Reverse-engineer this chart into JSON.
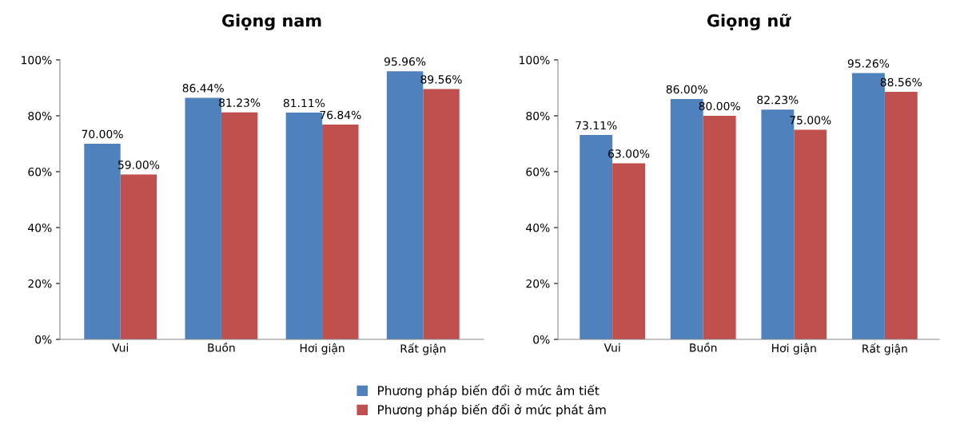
{
  "chart_data": [
    {
      "type": "bar",
      "title": "Giọng nam",
      "categories": [
        "Vui",
        "Buồn",
        "Hơi giận",
        "Rất giận"
      ],
      "series": [
        {
          "name": "Phương pháp biến đổi ở mức âm tiết",
          "color": "#4f81bd",
          "values": [
            70.0,
            86.44,
            81.11,
            95.96
          ],
          "value_labels": [
            "70.00%",
            "86.44%",
            "81.11%",
            "95.96%"
          ]
        },
        {
          "name": "Phương pháp biến đổi ở mức phát âm",
          "color": "#c0504d",
          "values": [
            59.0,
            81.23,
            76.84,
            89.56
          ],
          "value_labels": [
            "59.00%",
            "81.23%",
            "76.84%",
            "89.56%"
          ]
        }
      ],
      "ylim": [
        0,
        100
      ],
      "yticks": [
        {
          "value": 0,
          "label": "0%"
        },
        {
          "value": 20,
          "label": "20%"
        },
        {
          "value": 40,
          "label": "40%"
        },
        {
          "value": 60,
          "label": "60%"
        },
        {
          "value": 80,
          "label": "80%"
        },
        {
          "value": 100,
          "label": "100%"
        }
      ],
      "grid": false,
      "legend": "bottom"
    },
    {
      "type": "bar",
      "title": "Giọng nữ",
      "categories": [
        "Vui",
        "Buồn",
        "Hơi giận",
        "Rất giận"
      ],
      "series": [
        {
          "color": "#4f81bd",
          "values": [
            73.11,
            86.0,
            82.23,
            95.26
          ],
          "value_labels": [
            "73.11%",
            "86.00%",
            "82.23%",
            "95.26%"
          ]
        },
        {
          "color": "#c0504d",
          "values": [
            63.0,
            80.0,
            75.0,
            88.56
          ],
          "value_labels": [
            "63.00%",
            "80.00%",
            "75.00%",
            "88.56%"
          ]
        }
      ],
      "ylim": [
        0,
        100
      ],
      "yticks": [
        {
          "value": 0,
          "label": "0%"
        },
        {
          "value": 20,
          "label": "20%"
        },
        {
          "value": 40,
          "label": "40%"
        },
        {
          "value": 60,
          "label": "60%"
        },
        {
          "value": 80,
          "label": "80%"
        },
        {
          "value": 100,
          "label": "100%"
        }
      ],
      "grid": false
    }
  ]
}
